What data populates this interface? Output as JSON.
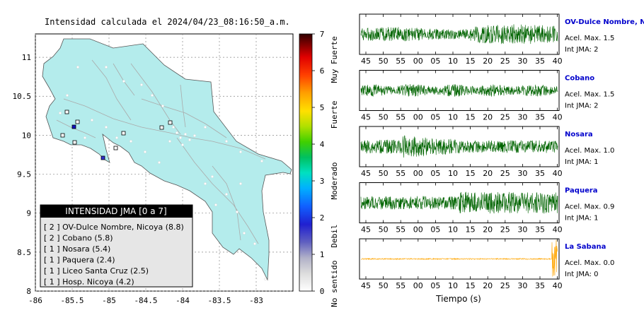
{
  "map": {
    "title": "Intensidad calculada el 2024/04/23_08:16:50_a.m.",
    "xticks": [
      "-86",
      "-85.5",
      "-85",
      "-84.5",
      "-84",
      "-83.5",
      "-83"
    ],
    "yticks": [
      "8",
      "8.5",
      "9",
      "9.5",
      "10",
      "10.5",
      "11"
    ],
    "xlim": [
      -86,
      -82.5
    ],
    "ylim": [
      8,
      11.3
    ],
    "stations": [
      {
        "lon": -85.47,
        "lat": 10.05,
        "intensity": 2
      },
      {
        "lon": -85.1,
        "lat": 9.7,
        "intensity": 1
      }
    ],
    "legend": {
      "title": "INTENSIDAD JMA [0 a 7]",
      "items": [
        "[ 2 ]  OV-Dulce Nombre, Nicoya (8.8)",
        "[ 2 ]  Cobano (5.8)",
        "[ 1 ]  Nosara (5.4)",
        "[ 1 ]  Paquera (2.4)",
        "[ 1 ]  Liceo Santa Cruz (2.5)",
        "[ 1 ]  Hosp. Nicoya (4.2)"
      ]
    }
  },
  "colorbar": {
    "ticks": [
      "0",
      "1",
      "2",
      "3",
      "4",
      "5",
      "6",
      "7"
    ],
    "categories": [
      "No sentido",
      "Debil",
      "Moderado",
      "Fuerte",
      "Muy Fuerte"
    ]
  },
  "chart_data": [
    {
      "type": "line",
      "name": "OV-Dulce Nombre, Nicoya",
      "acel_label": "Acel. Max. 1.5",
      "int_label": "Int JMA: 2",
      "color": "#006400",
      "amplitude": 0.55,
      "envelope": "late",
      "xticks": [
        "45",
        "50",
        "55",
        "00",
        "05",
        "10",
        "15",
        "20",
        "25",
        "30",
        "35",
        "40"
      ]
    },
    {
      "type": "line",
      "name": "Cobano",
      "acel_label": "Acel. Max. 1.5",
      "int_label": "Int JMA: 2",
      "color": "#006400",
      "amplitude": 0.35,
      "envelope": "flat",
      "xticks": [
        "45",
        "50",
        "55",
        "00",
        "05",
        "10",
        "15",
        "20",
        "25",
        "30",
        "35",
        "40"
      ]
    },
    {
      "type": "line",
      "name": "Nosara",
      "acel_label": "Acel. Max. 1.0",
      "int_label": "Int JMA: 1",
      "color": "#006400",
      "amplitude": 0.7,
      "envelope": "early",
      "xticks": [
        "45",
        "50",
        "55",
        "00",
        "05",
        "10",
        "15",
        "20",
        "25",
        "30",
        "35",
        "40"
      ]
    },
    {
      "type": "line",
      "name": "Paquera",
      "acel_label": "Acel. Max. 0.9",
      "int_label": "Int JMA: 1",
      "color": "#006400",
      "amplitude": 0.6,
      "envelope": "mid",
      "xticks": [
        "45",
        "50",
        "55",
        "00",
        "05",
        "10",
        "15",
        "20",
        "25",
        "30",
        "35",
        "40"
      ]
    },
    {
      "type": "line",
      "name": "La Sabana",
      "acel_label": "Acel. Max. 0.0",
      "int_label": "Int JMA: 0",
      "color": "#FFA500",
      "amplitude": 0.12,
      "envelope": "spike",
      "xticks": [
        "45",
        "50",
        "55",
        "00",
        "05",
        "10",
        "15",
        "20",
        "25",
        "30",
        "35",
        "40"
      ]
    }
  ],
  "waveform_xlabel": "Tiempo (s)",
  "colors": {
    "land": "#b4ecec",
    "station_name": "#0000cc",
    "legend_header": "#000000",
    "legend_bg": "#e6e6e6"
  }
}
